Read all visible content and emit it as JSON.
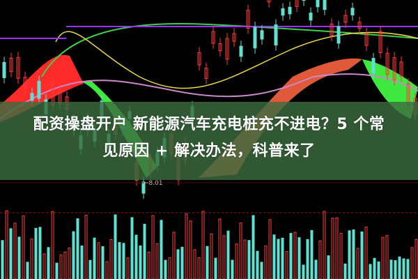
{
  "title_line1": "配资操盘开户 新能源汽车充电桩充不进电？5 个常",
  "title_line2": "见原因 + 解决办法，科普来了",
  "price_label": "←8.01",
  "colors": {
    "up": "#ff3b3b",
    "down": "#5fe0d0",
    "ribbon_up": "#ff2a2a",
    "ribbon_down": "#3ee83e",
    "ma_purple": "#9b30ff",
    "ma_yellow": "#e8d84a",
    "overlay": "#3a6c3e"
  }
}
